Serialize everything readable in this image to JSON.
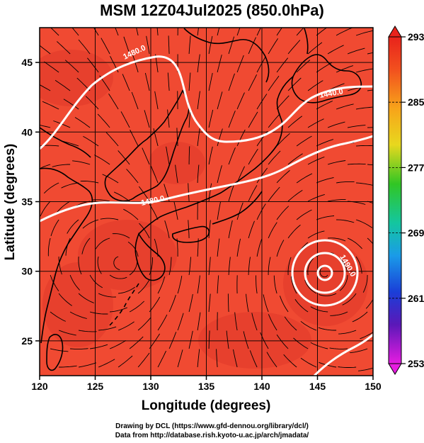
{
  "title": "MSM 12Z04Jul2025 (850.0hPa)",
  "map": {
    "xlabel": "Longitude (degrees)",
    "ylabel": "Latitude  (degrees)",
    "lon_range": [
      120,
      150
    ],
    "lat_range": [
      22.5,
      47.5
    ],
    "lon_ticks": [
      "120",
      "125",
      "130",
      "135",
      "140",
      "145",
      "150"
    ],
    "lat_ticks": [
      "25",
      "30",
      "35",
      "40",
      "45"
    ],
    "contour_labels": [
      "1480.0",
      "1440.0",
      "1480.0",
      "1490.0",
      "1490.0"
    ],
    "colors": {
      "field": "#f04a32",
      "coast": "#000000",
      "contour": "#ffffff"
    }
  },
  "colorbar": {
    "ticks": [
      "293",
      "285",
      "277",
      "269",
      "261",
      "253"
    ],
    "range": [
      253,
      293
    ]
  },
  "credits": {
    "line1": "Drawing by DCL (https://www.gfd-dennou.org/library/dcl/)",
    "line2": "Data from http://database.rish.kyoto-u.ac.jp/arch/jmadata/"
  }
}
